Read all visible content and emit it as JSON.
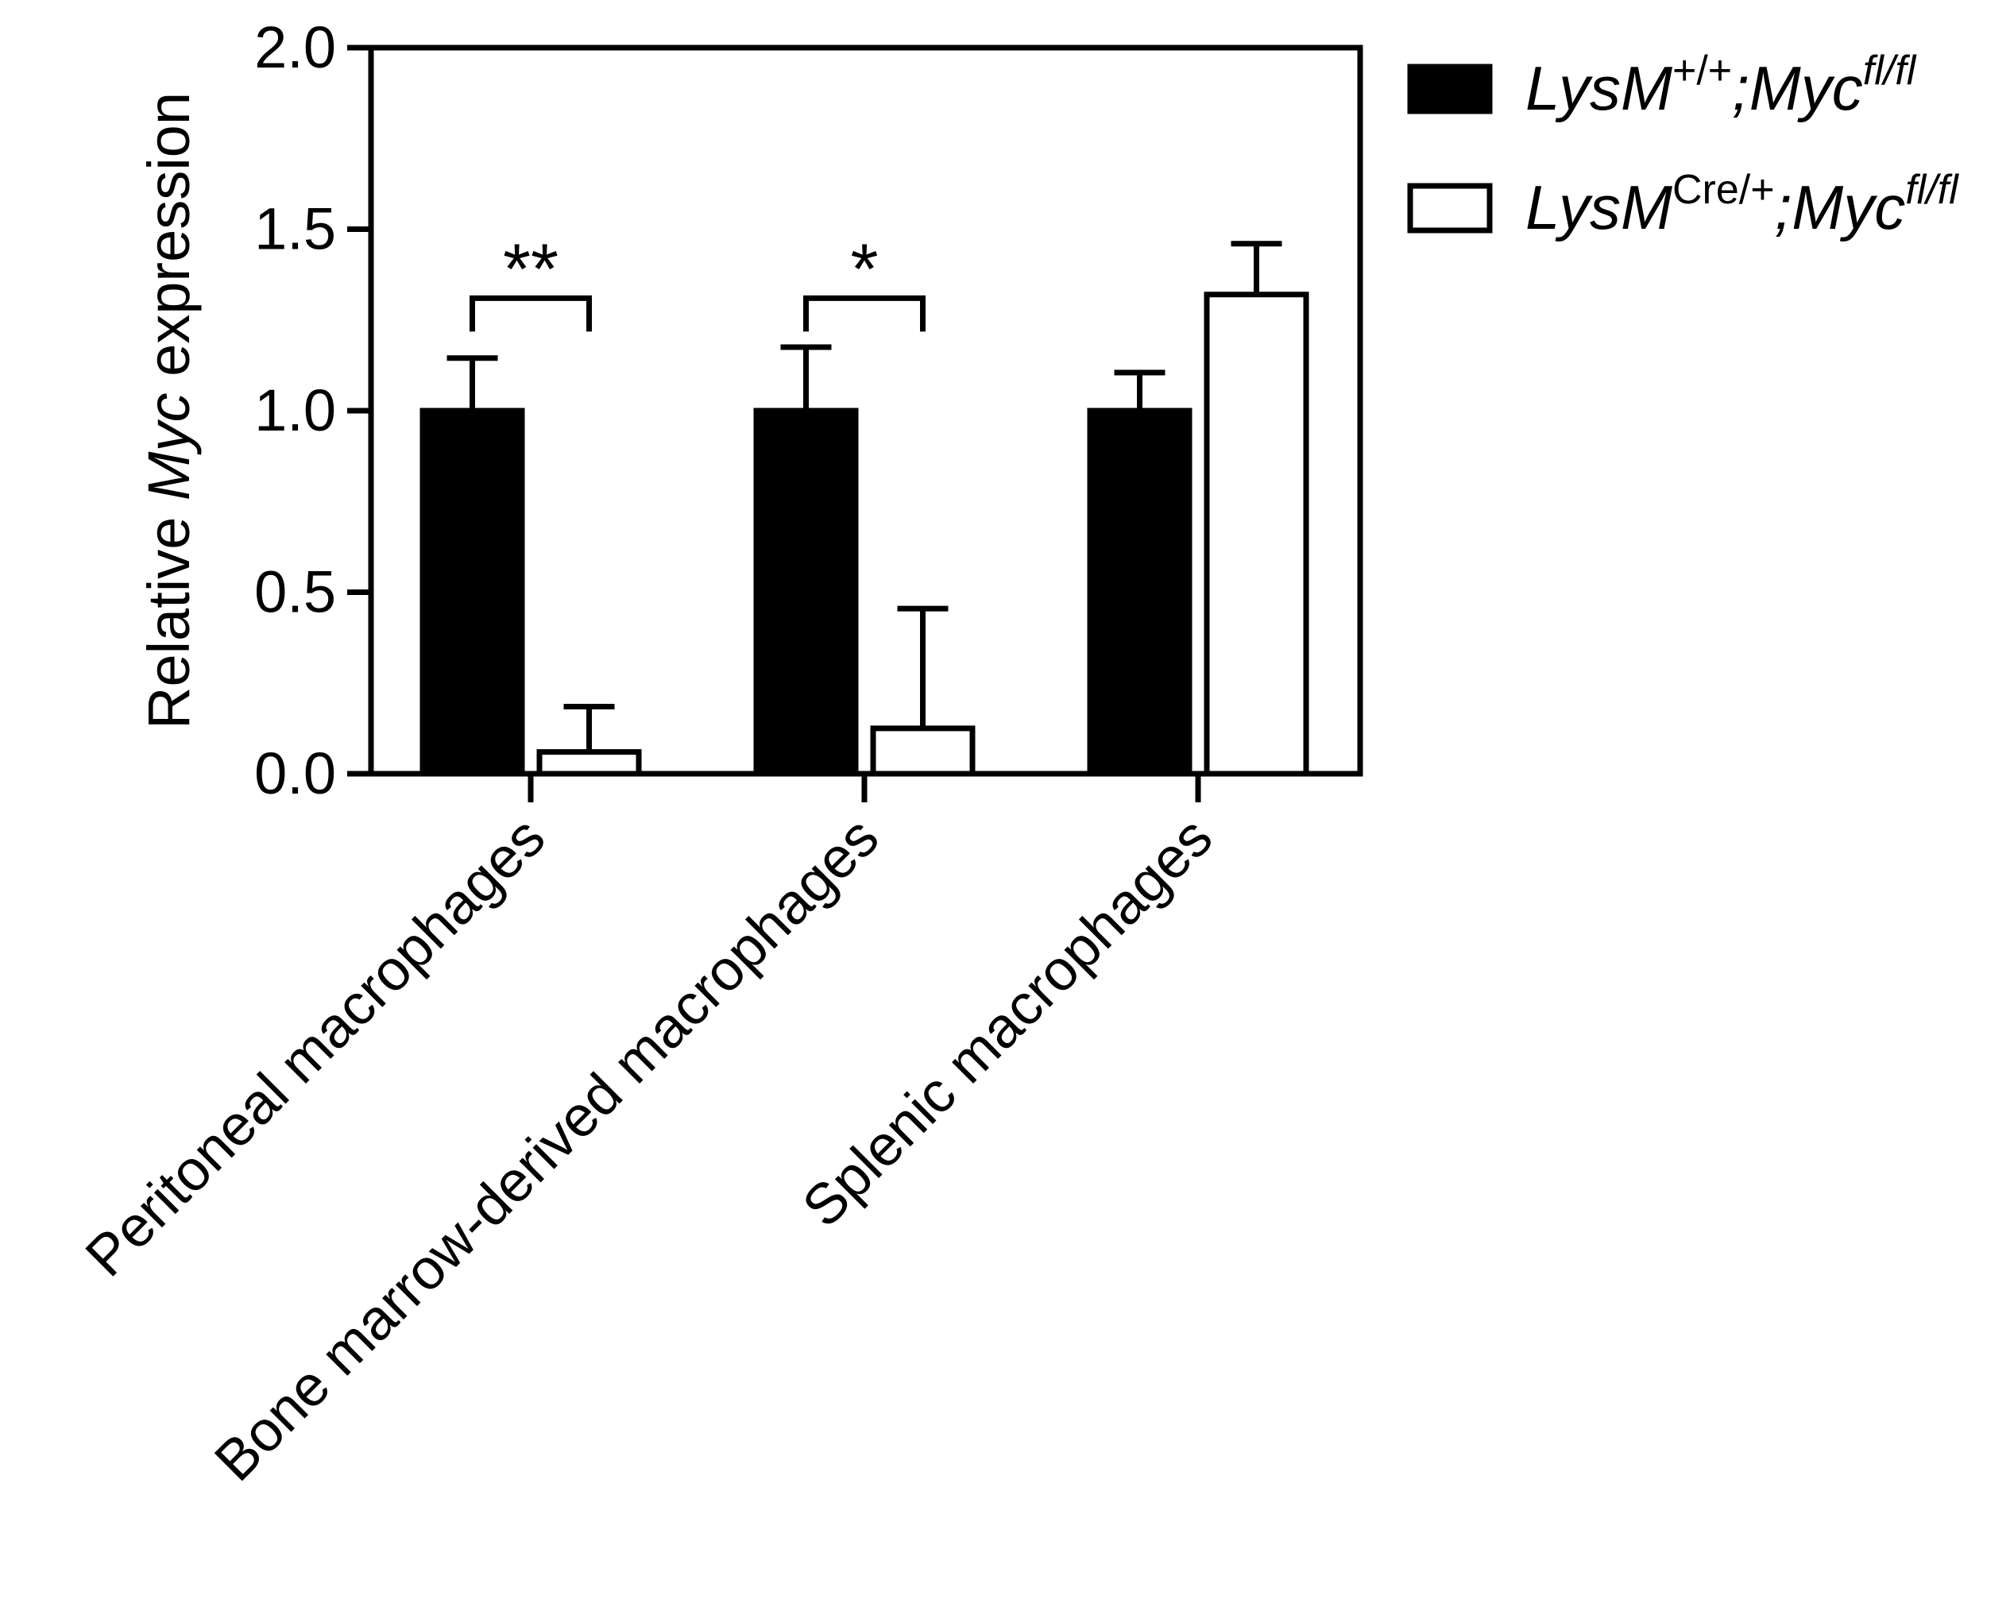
{
  "chart_data": {
    "type": "bar",
    "categories": [
      "Peritoneal macrophages",
      "Bone marrow-derived macrophages",
      "Splenic macrophages"
    ],
    "series": [
      {
        "name_parts": {
          "base": "LysM",
          "sup1": "+/+",
          "mid": ";Myc",
          "sup2": "fl/fl"
        },
        "fill": "#000000",
        "values": [
          1.0,
          1.0,
          1.0
        ],
        "errors": [
          0.145,
          0.175,
          0.105
        ]
      },
      {
        "name_parts": {
          "base": "LysM",
          "sup1": "Cre/+",
          "mid": ";Myc",
          "sup2": "fl/fl"
        },
        "fill": "#ffffff",
        "values": [
          0.06,
          0.125,
          1.32
        ],
        "errors": [
          0.125,
          0.33,
          0.14
        ]
      }
    ],
    "ylabel": {
      "pre": "Relative ",
      "italic": "Myc",
      "post": " expression"
    },
    "ylim": [
      0,
      2.0
    ],
    "yticks": [
      "0.0",
      "0.5",
      "1.0",
      "1.5",
      "2.0"
    ],
    "significance": [
      {
        "category": 0,
        "label": "**",
        "y": 1.31
      },
      {
        "category": 1,
        "label": "*",
        "y": 1.31
      }
    ],
    "legend": "top-right",
    "grid": false
  }
}
